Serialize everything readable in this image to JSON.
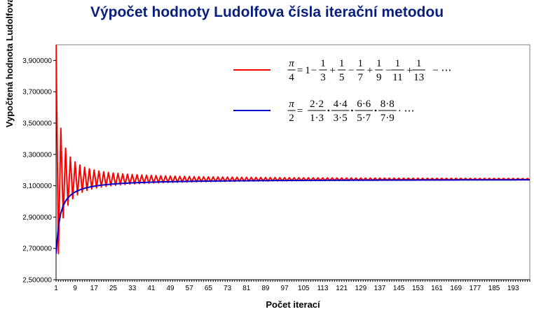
{
  "chart_data": {
    "type": "line",
    "title": "Výpočet hodnoty Ludolfova čísla iterační metodou",
    "xlabel": "Počet iterací",
    "ylabel": "Vypočtená hodnota Ludolfova čísla",
    "ylim": [
      2.5,
      4.0
    ],
    "yticks": [
      "2,500000",
      "2,700000",
      "2,900000",
      "3,100000",
      "3,300000",
      "3,500000",
      "3,700000",
      "3,900000"
    ],
    "xticks": [
      "1",
      "9",
      "17",
      "25",
      "33",
      "41",
      "49",
      "57",
      "65",
      "73",
      "81",
      "89",
      "97",
      "105",
      "113",
      "121",
      "129",
      "137",
      "145",
      "153",
      "161",
      "169",
      "177",
      "185",
      "193"
    ],
    "x_range": [
      1,
      200
    ],
    "grid": false,
    "legend_position": "top-right",
    "series": [
      {
        "name": "π/4 = 1 − 1/3 + 1/5 − 1/7 + 1/9 − 1/11 + 1/13 − ⋯",
        "color": "#ff0000",
        "method": "leibniz",
        "first_values": [
          4.0,
          2.666667,
          3.466667,
          2.895238,
          3.339683,
          2.976046,
          3.283738,
          3.017072,
          3.252366,
          3.04184
        ]
      },
      {
        "name": "π/2 = (2·2)/(1·3) · (4·4)/(3·5) · (6·6)/(5·7) · (8·8)/(7·9) · ⋯",
        "color": "#0000cc",
        "method": "wallis",
        "first_values": [
          2.666667,
          2.844444,
          2.925714,
          2.972154,
          3.002176,
          3.02317,
          3.038674,
          3.050589,
          3.060034,
          3.067704
        ]
      }
    ],
    "legend": {
      "formula1": {
        "lhs_num": "π",
        "lhs_den": "4",
        "eq": "=",
        "one": "1",
        "terms": [
          {
            "sign": "−",
            "num": "1",
            "den": "3"
          },
          {
            "sign": "+",
            "num": "1",
            "den": "5"
          },
          {
            "sign": "−",
            "num": "1",
            "den": "7"
          },
          {
            "sign": "+",
            "num": "1",
            "den": "9"
          },
          {
            "sign": "−",
            "num": "1",
            "den": "11"
          },
          {
            "sign": "+",
            "num": "1",
            "den": "13"
          }
        ],
        "tail": "− ⋯"
      },
      "formula2": {
        "lhs_num": "π",
        "lhs_den": "2",
        "eq": "=",
        "factors": [
          {
            "num": "2·2",
            "den": "1·3"
          },
          {
            "num": "4·4",
            "den": "3·5"
          },
          {
            "num": "6·6",
            "den": "5·7"
          },
          {
            "num": "8·8",
            "den": "7·9"
          }
        ],
        "tail": "· ⋯"
      }
    }
  }
}
